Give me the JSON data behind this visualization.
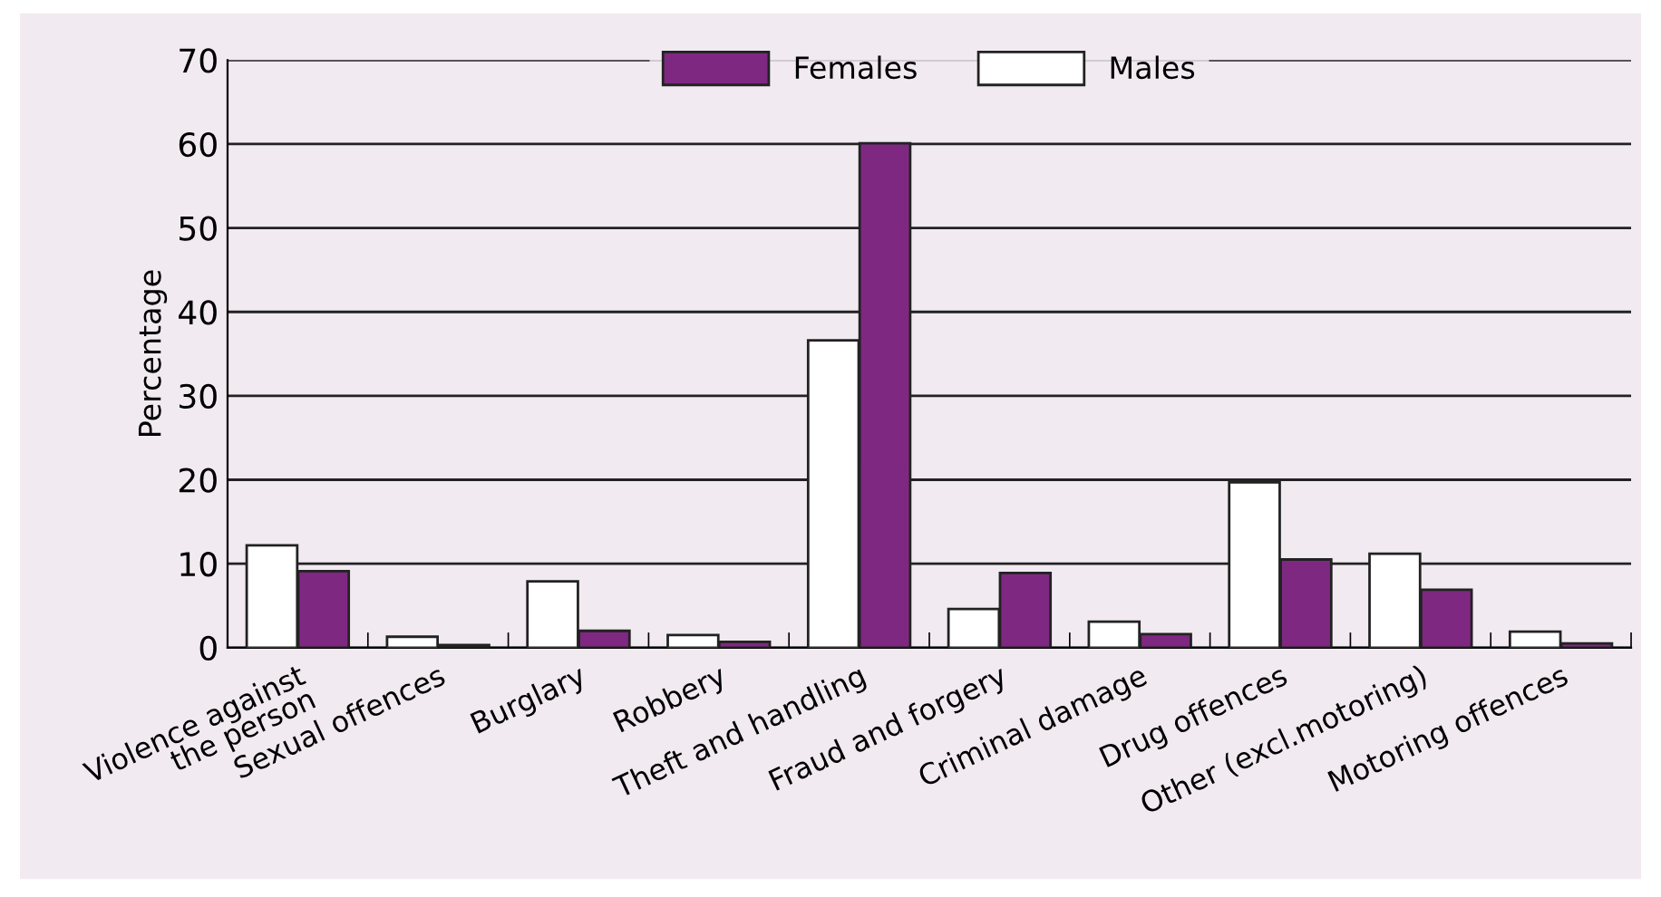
{
  "chart_data": {
    "type": "bar",
    "ylabel": "Percentage",
    "categories": [
      "Violence against\nthe person",
      "Sexual offences",
      "Burglary",
      "Robbery",
      "Theft and handling",
      "Fraud and forgery",
      "Criminal damage",
      "Drug offences",
      "Other (excl.motoring)",
      "Motoring offences"
    ],
    "series": [
      {
        "name": "Males",
        "color": "#ffffff",
        "values": [
          12.2,
          1.3,
          7.9,
          1.5,
          36.6,
          4.6,
          3.1,
          19.7,
          11.2,
          1.9
        ]
      },
      {
        "name": "Females",
        "color": "#7f2882",
        "values": [
          9.1,
          0.3,
          2.0,
          0.7,
          60.1,
          8.9,
          1.6,
          10.5,
          6.9,
          0.5
        ]
      }
    ],
    "ylim": [
      0,
      70
    ],
    "yticks": [
      0,
      10,
      20,
      30,
      40,
      50,
      60,
      70
    ],
    "grid": "y",
    "legend": "top"
  }
}
